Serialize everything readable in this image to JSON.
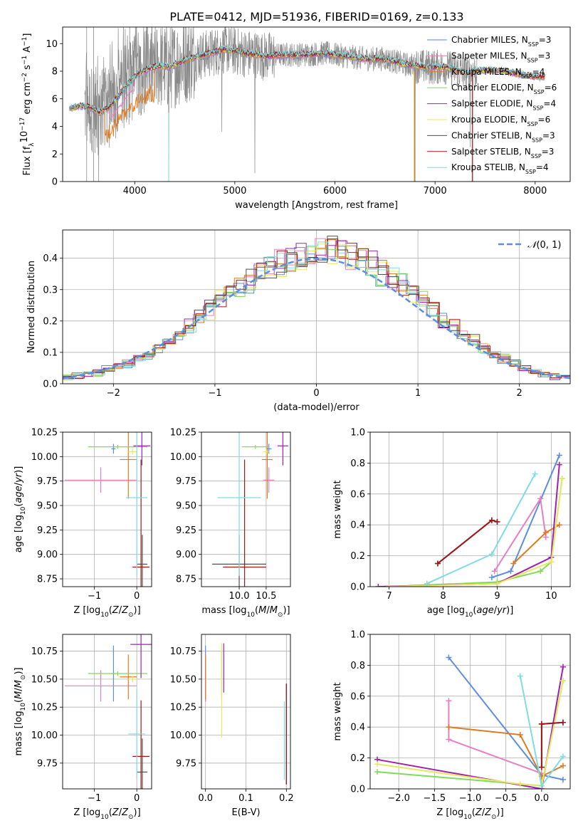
{
  "figure_title": "PLATE=0412, MJD=51936, FIBERID=0169, z=0.133",
  "models": [
    {
      "name": "Chabrier MILES, N_SSP=3",
      "label_main": "Chabrier MILES, N",
      "label_sub": "SSP",
      "label_end": "=3",
      "color": "#5b8ee0"
    },
    {
      "name": "Salpeter MILES, N_SSP=3",
      "label_main": "Salpeter MILES, N",
      "label_sub": "SSP",
      "label_end": "=3",
      "color": "#e87fc0"
    },
    {
      "name": "Kroupa MILES, N_SSP=4",
      "label_main": "Kroupa MILES, N",
      "label_sub": "SSP",
      "label_end": "=4",
      "color": "#e07a20"
    },
    {
      "name": "Chabrier ELODIE, N_SSP=6",
      "label_main": "Chabrier ELODIE, N",
      "label_sub": "SSP",
      "label_end": "=6",
      "color": "#7fdc5a"
    },
    {
      "name": "Salpeter ELODIE, N_SSP=4",
      "label_main": "Salpeter ELODIE, N",
      "label_sub": "SSP",
      "label_end": "=4",
      "color": "#a020b0"
    },
    {
      "name": "Kroupa ELODIE, N_SSP=6",
      "label_main": "Kroupa ELODIE, N",
      "label_sub": "SSP",
      "label_end": "=6",
      "color": "#e8e860"
    },
    {
      "name": "Chabrier STELIB, N_SSP=3",
      "label_main": "Chabrier STELIB, N",
      "label_sub": "SSP",
      "label_end": "=3",
      "color": "#505050"
    },
    {
      "name": "Salpeter STELIB, N_SSP=3",
      "label_main": "Salpeter STELIB, N",
      "label_sub": "SSP",
      "label_end": "=3",
      "color": "#a01818"
    },
    {
      "name": "Kroupa STELIB, N_SSP=4",
      "label_main": "Kroupa STELIB, N",
      "label_sub": "SSP",
      "label_end": "=4",
      "color": "#80dce0"
    }
  ],
  "chart_data": [
    {
      "id": "spectrum",
      "type": "line",
      "xlabel": "wavelength [Angstrom, rest frame]",
      "ylabel": "Flux [f_λ 10^-17 erg cm^-2 s^-1 A^-1]",
      "ylabel_parts": {
        "main": "Flux [f",
        "sub": "λ",
        "mid": "10",
        "sup1": "−17",
        "mid2": " erg cm",
        "sup2": "−2",
        "mid3": " s",
        "sup3": "−1",
        "mid4": " A",
        "sup4": "−1",
        "end": "]"
      },
      "xlim": [
        3280,
        8350
      ],
      "ylim": [
        0,
        11.2
      ],
      "xticks": [
        4000,
        5000,
        6000,
        7000,
        8000
      ],
      "yticks": [
        0,
        2,
        4,
        6,
        8,
        10
      ],
      "grid": false,
      "legend": "top-right",
      "continuum_model": {
        "x": [
          3350,
          3450,
          3550,
          3650,
          3750,
          3850,
          3950,
          4050,
          4150,
          4250,
          4350,
          4500,
          4700,
          4900,
          5100,
          5300,
          5500,
          5700,
          5900,
          6100,
          6300,
          6500,
          6700,
          6900,
          7100,
          7300,
          7500,
          7700,
          7900,
          8050
        ],
        "y": [
          5.3,
          5.5,
          5.4,
          5.0,
          5.4,
          6.3,
          7.3,
          7.9,
          8.2,
          8.4,
          8.3,
          8.8,
          9.2,
          9.6,
          9.3,
          9.1,
          9.2,
          9.2,
          9.3,
          9.1,
          8.9,
          8.9,
          8.5,
          8.3,
          8.3,
          7.9,
          8.1,
          8.0,
          7.7,
          7.6
        ]
      },
      "observed_range": [
        3500,
        7420
      ],
      "narrow_dips": [
        [
          3640,
          0
        ],
        [
          4340,
          0
        ],
        [
          4870,
          3.6
        ],
        [
          5200,
          0.6
        ],
        [
          6800,
          0
        ],
        [
          7350,
          2.5
        ]
      ]
    },
    {
      "id": "residual_hist",
      "type": "histogram",
      "xlabel": "(data-model)/error",
      "ylabel": "Normed distribution",
      "xlim": [
        -2.5,
        2.5
      ],
      "ylim": [
        0,
        0.49
      ],
      "xticks": [
        -2,
        -1,
        0,
        1,
        2
      ],
      "yticks": [
        0.0,
        0.1,
        0.2,
        0.3,
        0.4
      ],
      "grid": true,
      "legend": "top-right",
      "reference": {
        "name": "𝒩(0,1)",
        "label_N": "𝒩",
        "label_rest": "(0, 1)",
        "mean": 0,
        "sigma": 1,
        "color": "#5b8ee0"
      },
      "bin_width": 0.1,
      "bin_centers": [
        -2.45,
        -2.35,
        -2.25,
        -2.15,
        -2.05,
        -1.95,
        -1.85,
        -1.75,
        -1.65,
        -1.55,
        -1.45,
        -1.35,
        -1.25,
        -1.15,
        -1.05,
        -0.95,
        -0.85,
        -0.75,
        -0.65,
        -0.55,
        -0.45,
        -0.35,
        -0.25,
        -0.15,
        -0.05,
        0.05,
        0.15,
        0.25,
        0.35,
        0.45,
        0.55,
        0.65,
        0.75,
        0.85,
        0.95,
        1.05,
        1.15,
        1.25,
        1.35,
        1.45,
        1.55,
        1.65,
        1.75,
        1.85,
        1.95,
        2.05,
        2.15,
        2.25,
        2.35,
        2.45
      ],
      "base_values": [
        0.02,
        0.025,
        0.03,
        0.035,
        0.045,
        0.055,
        0.065,
        0.08,
        0.095,
        0.115,
        0.135,
        0.16,
        0.185,
        0.21,
        0.235,
        0.265,
        0.29,
        0.315,
        0.335,
        0.355,
        0.37,
        0.385,
        0.395,
        0.41,
        0.42,
        0.42,
        0.425,
        0.42,
        0.41,
        0.395,
        0.375,
        0.355,
        0.335,
        0.31,
        0.285,
        0.26,
        0.235,
        0.205,
        0.18,
        0.16,
        0.135,
        0.115,
        0.095,
        0.08,
        0.065,
        0.05,
        0.04,
        0.03,
        0.025,
        0.02
      ]
    },
    {
      "id": "age_vs_Z",
      "type": "errorbar",
      "xlabel": "Z [log10(Z/Z⊙)]",
      "ylabel": "age [log10(age/yr)]",
      "xlim": [
        -1.75,
        0.35
      ],
      "ylim": [
        8.67,
        10.25
      ],
      "xticks": [
        -1,
        0
      ],
      "yticks": [
        8.75,
        9.0,
        9.25,
        9.5,
        9.75,
        10.0,
        10.25
      ],
      "grid": true,
      "points": [
        {
          "model": 0,
          "x": -0.55,
          "xerr": 0.05,
          "y": 10.08,
          "yerr": 0.05
        },
        {
          "model": 1,
          "x": -0.85,
          "xerr": 0.85,
          "y": 9.76,
          "yerr": 0.13
        },
        {
          "model": 2,
          "x": -0.2,
          "xerr": 0.2,
          "y": 9.97,
          "yerr": 0.4
        },
        {
          "model": 3,
          "x": -0.45,
          "xerr": 0.7,
          "y": 10.1,
          "yerr": 0.02
        },
        {
          "model": 4,
          "x": 0.12,
          "xerr": 0.2,
          "y": 10.11,
          "yerr": 0.2
        },
        {
          "model": 5,
          "x": -0.1,
          "xerr": 0.1,
          "y": 10.05,
          "yerr": 0.03
        },
        {
          "model": 6,
          "x": 0.13,
          "xerr": 0.12,
          "y": 8.9,
          "yerr": 0.3
        },
        {
          "model": 7,
          "x": 0.1,
          "xerr": 0.2,
          "y": 8.87,
          "yerr": 1.1
        },
        {
          "model": 8,
          "x": 0.0,
          "xerr": 0.25,
          "y": 9.58,
          "yerr": 0.8
        }
      ]
    },
    {
      "id": "age_vs_mass",
      "type": "errorbar",
      "xlabel": "mass [log10(M/M⊙)]",
      "ylabel": "",
      "xlim": [
        9.3,
        10.95
      ],
      "ylim": [
        8.67,
        10.25
      ],
      "xticks": [
        10.0,
        10.5
      ],
      "yticks": [
        8.75,
        9.0,
        9.25,
        9.5,
        9.75,
        10.0,
        10.25
      ],
      "grid": true,
      "points": [
        {
          "model": 0,
          "x": 10.55,
          "xerr": 0.05,
          "y": 10.08,
          "yerr": 0.05
        },
        {
          "model": 1,
          "x": 10.55,
          "xerr": 0.1,
          "y": 9.76,
          "yerr": 0.13
        },
        {
          "model": 2,
          "x": 10.52,
          "xerr": 0.1,
          "y": 9.97,
          "yerr": 0.4
        },
        {
          "model": 3,
          "x": 10.3,
          "xerr": 0.25,
          "y": 10.1,
          "yerr": 0.02
        },
        {
          "model": 4,
          "x": 10.81,
          "xerr": 0.1,
          "y": 10.11,
          "yerr": 0.2
        },
        {
          "model": 5,
          "x": 10.5,
          "xerr": 0.05,
          "y": 10.05,
          "yerr": 0.03
        },
        {
          "model": 6,
          "x": 10.0,
          "xerr": 0.5,
          "y": 8.9,
          "yerr": 0.3
        },
        {
          "model": 7,
          "x": 10.1,
          "xerr": 0.4,
          "y": 8.87,
          "yerr": 1.1
        },
        {
          "model": 8,
          "x": 10.0,
          "xerr": 0.4,
          "y": 9.58,
          "yerr": 0.8
        }
      ]
    },
    {
      "id": "weight_vs_age",
      "type": "line",
      "xlabel": "age [log10(age/yr)]",
      "ylabel": "mass weight",
      "xlim": [
        6.65,
        10.35
      ],
      "ylim": [
        0,
        1.0
      ],
      "xticks": [
        7,
        8,
        9,
        10
      ],
      "yticks": [
        0.0,
        0.2,
        0.4,
        0.6,
        0.8,
        1.0
      ],
      "grid": true,
      "series": [
        {
          "model": 0,
          "x": [
            8.9,
            9.25,
            10.15
          ],
          "y": [
            0.06,
            0.1,
            0.85
          ]
        },
        {
          "model": 1,
          "x": [
            8.95,
            9.8,
            9.9
          ],
          "y": [
            0.1,
            0.57,
            0.32
          ]
        },
        {
          "model": 2,
          "x": [
            9.3,
            9.9,
            10.15
          ],
          "y": [
            0.15,
            0.35,
            0.4
          ]
        },
        {
          "model": 3,
          "x": [
            7.0,
            9.0,
            9.8,
            10.0,
            10.2
          ],
          "y": [
            0.0,
            0.03,
            0.1,
            0.16,
            0.7
          ]
        },
        {
          "model": 4,
          "x": [
            6.8,
            9.0,
            10.0,
            10.15
          ],
          "y": [
            0.0,
            0.02,
            0.19,
            0.79
          ]
        },
        {
          "model": 5,
          "x": [
            7.0,
            9.0,
            10.0,
            10.2
          ],
          "y": [
            0.0,
            0.02,
            0.16,
            0.7
          ]
        },
        {
          "model": 6,
          "x": [
            7.9,
            8.9,
            9.0
          ],
          "y": [
            0.15,
            0.43,
            0.42
          ]
        },
        {
          "model": 7,
          "x": [
            7.9,
            8.9,
            9.0
          ],
          "y": [
            0.15,
            0.43,
            0.42
          ]
        },
        {
          "model": 8,
          "x": [
            7.7,
            8.9,
            9.7
          ],
          "y": [
            0.02,
            0.21,
            0.73
          ]
        }
      ]
    },
    {
      "id": "mass_vs_Z",
      "type": "errorbar",
      "xlabel": "Z [log10(Z/Z⊙)]",
      "ylabel": "mass [log10(M/M⊙)]",
      "xlim": [
        -1.75,
        0.35
      ],
      "ylim": [
        9.52,
        10.9
      ],
      "xticks": [
        -1,
        0
      ],
      "yticks": [
        9.75,
        10.0,
        10.25,
        10.5,
        10.75
      ],
      "grid": true,
      "points": [
        {
          "model": 0,
          "x": -0.55,
          "xerr": 0.05,
          "y": 10.55,
          "yerr": 0.25
        },
        {
          "model": 1,
          "x": -0.85,
          "xerr": 0.85,
          "y": 10.44,
          "yerr": 0.14
        },
        {
          "model": 2,
          "x": -0.2,
          "xerr": 0.2,
          "y": 10.52,
          "yerr": 0.2
        },
        {
          "model": 3,
          "x": -0.45,
          "xerr": 0.7,
          "y": 10.55,
          "yerr": 0.02
        },
        {
          "model": 4,
          "x": 0.1,
          "xerr": 0.25,
          "y": 10.81,
          "yerr": 0.3
        },
        {
          "model": 5,
          "x": -0.1,
          "xerr": 0.1,
          "y": 10.5,
          "yerr": 0.03
        },
        {
          "model": 6,
          "x": 0.13,
          "xerr": 0.12,
          "y": 9.67,
          "yerr": 0.3
        },
        {
          "model": 7,
          "x": 0.1,
          "xerr": 0.2,
          "y": 9.81,
          "yerr": 0.5
        },
        {
          "model": 8,
          "x": 0.0,
          "xerr": 0.2,
          "y": 10.01,
          "yerr": 0.4
        }
      ]
    },
    {
      "id": "mass_vs_ebv",
      "type": "errorbar",
      "xlabel": "E(B-V)",
      "ylabel": "",
      "xlim": [
        -0.01,
        0.21
      ],
      "ylim": [
        9.52,
        10.9
      ],
      "xticks": [
        0.0,
        0.1,
        0.2
      ],
      "yticks": [
        9.75,
        10.0,
        10.25,
        10.5,
        10.75
      ],
      "grid": true,
      "points": [
        {
          "model": 0,
          "x": 0.0,
          "xerr": 0.0,
          "y": 10.55,
          "yerr": 0.25
        },
        {
          "model": 1,
          "x": 0.0,
          "xerr": 0.0,
          "y": 10.44,
          "yerr": 0.14
        },
        {
          "model": 2,
          "x": 0.0,
          "xerr": 0.0,
          "y": 10.52,
          "yerr": 0.2
        },
        {
          "model": 3,
          "x": 0.04,
          "xerr": 0.0,
          "y": 10.55,
          "yerr": 0.2
        },
        {
          "model": 4,
          "x": 0.045,
          "xerr": 0.0,
          "y": 10.6,
          "yerr": 0.22
        },
        {
          "model": 5,
          "x": 0.04,
          "xerr": 0.0,
          "y": 10.4,
          "yerr": 0.42
        },
        {
          "model": 6,
          "x": 0.2,
          "xerr": 0.0,
          "y": 10.01,
          "yerr": 0.45
        },
        {
          "model": 7,
          "x": 0.2,
          "xerr": 0.0,
          "y": 10.01,
          "yerr": 0.45
        },
        {
          "model": 8,
          "x": 0.195,
          "xerr": 0.0,
          "y": 9.95,
          "yerr": 0.35
        }
      ]
    },
    {
      "id": "weight_vs_Z",
      "type": "line",
      "xlabel": "Z [log10(Z/Z⊙)]",
      "ylabel": "mass weight",
      "xlim": [
        -2.4,
        0.4
      ],
      "ylim": [
        0,
        1.0
      ],
      "xticks": [
        -2.0,
        -1.5,
        -1.0,
        -0.5,
        0.0
      ],
      "yticks": [
        0.0,
        0.2,
        0.4,
        0.6,
        0.8,
        1.0
      ],
      "grid": true,
      "series": [
        {
          "model": 0,
          "x": [
            -1.3,
            0.0,
            0.3
          ],
          "y": [
            0.85,
            0.09,
            0.06
          ]
        },
        {
          "model": 1,
          "x": [
            -1.3,
            -1.3,
            -1.3,
            0.0
          ],
          "y": [
            0.57,
            0.4,
            0.32,
            0.1
          ]
        },
        {
          "model": 2,
          "x": [
            -1.3,
            -0.3,
            0.0,
            0.3
          ],
          "y": [
            0.4,
            0.35,
            0.08,
            0.15
          ]
        },
        {
          "model": 3,
          "x": [
            -2.3,
            0.0,
            0.3
          ],
          "y": [
            0.11,
            0.02,
            0.7
          ]
        },
        {
          "model": 4,
          "x": [
            -2.3,
            0.0,
            0.3
          ],
          "y": [
            0.19,
            0.0,
            0.79
          ]
        },
        {
          "model": 5,
          "x": [
            -2.3,
            -0.3,
            0.0,
            0.3
          ],
          "y": [
            0.16,
            0.03,
            0.02,
            0.7
          ]
        },
        {
          "model": 6,
          "x": [
            0.0,
            0.0,
            0.3
          ],
          "y": [
            0.14,
            0.42,
            0.43
          ]
        },
        {
          "model": 7,
          "x": [
            0.0,
            0.0,
            0.3
          ],
          "y": [
            0.14,
            0.42,
            0.43
          ]
        },
        {
          "model": 8,
          "x": [
            -0.3,
            0.0,
            0.3
          ],
          "y": [
            0.73,
            0.02,
            0.21
          ]
        }
      ]
    }
  ]
}
